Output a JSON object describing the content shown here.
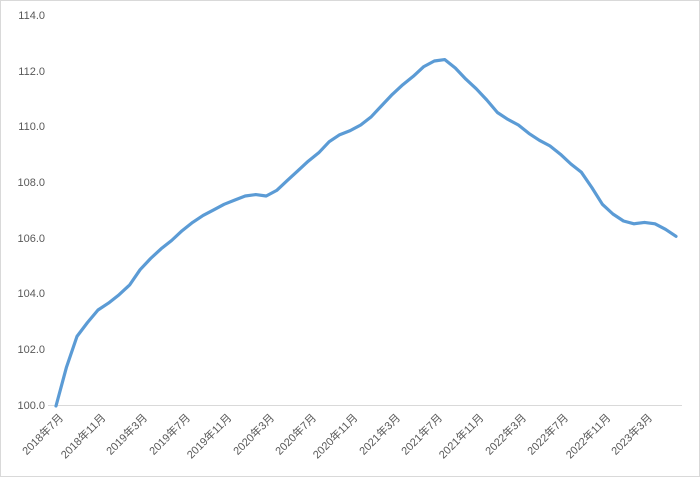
{
  "chart_data": {
    "type": "line",
    "title": "",
    "xlabel": "",
    "ylabel": "",
    "ylim": [
      100.0,
      114.0
    ],
    "y_tick_step": 2.0,
    "grid": false,
    "legend": "none",
    "line_color": "#5b9bd5",
    "axis_line_color": "#d9d9d9",
    "tick_label_color": "#595959",
    "background_color": "#ffffff",
    "y_tick_labels": [
      "114.0",
      "112.0",
      "110.0",
      "108.0",
      "106.0",
      "104.0",
      "102.0",
      "100.0"
    ],
    "x_tick_labels": [
      "2018年7月",
      "2018年11月",
      "2019年3月",
      "2019年7月",
      "2019年11月",
      "2020年3月",
      "2020年7月",
      "2020年11月",
      "2021年3月",
      "2021年7月",
      "2021年11月",
      "2022年3月",
      "2022年7月",
      "2022年11月",
      "2023年3月"
    ],
    "x_tick_every_n_points": 4,
    "series": [
      {
        "name": "",
        "x": [
          "2018年7月",
          "2018年8月",
          "2018年9月",
          "2018年10月",
          "2018年11月",
          "2018年12月",
          "2019年1月",
          "2019年2月",
          "2019年3月",
          "2019年4月",
          "2019年5月",
          "2019年6月",
          "2019年7月",
          "2019年8月",
          "2019年9月",
          "2019年10月",
          "2019年11月",
          "2019年12月",
          "2020年1月",
          "2020年2月",
          "2020年3月",
          "2020年4月",
          "2020年5月",
          "2020年6月",
          "2020年7月",
          "2020年8月",
          "2020年9月",
          "2020年10月",
          "2020年11月",
          "2020年12月",
          "2021年1月",
          "2021年2月",
          "2021年3月",
          "2021年4月",
          "2021年5月",
          "2021年6月",
          "2021年7月",
          "2021年8月",
          "2021年9月",
          "2021年10月",
          "2021年11月",
          "2021年12月",
          "2022年1月",
          "2022年2月",
          "2022年3月",
          "2022年4月",
          "2022年5月",
          "2022年6月",
          "2022年7月",
          "2022年8月",
          "2022年9月",
          "2022年10月",
          "2022年11月",
          "2022年12月",
          "2023年1月",
          "2023年2月",
          "2023年3月",
          "2023年4月",
          "2023年5月",
          "2023年6月"
        ],
        "values": [
          100.0,
          101.4,
          102.5,
          103.0,
          103.45,
          103.7,
          104.0,
          104.35,
          104.9,
          105.3,
          105.65,
          105.95,
          106.3,
          106.6,
          106.85,
          107.05,
          107.25,
          107.4,
          107.55,
          107.6,
          107.55,
          107.75,
          108.1,
          108.45,
          108.8,
          109.1,
          109.5,
          109.75,
          109.9,
          110.1,
          110.4,
          110.8,
          111.2,
          111.55,
          111.85,
          112.2,
          112.4,
          112.45,
          112.15,
          111.75,
          111.4,
          111.0,
          110.55,
          110.3,
          110.1,
          109.8,
          109.55,
          109.35,
          109.05,
          108.7,
          108.4,
          107.85,
          107.25,
          106.9,
          106.65,
          106.55,
          106.6,
          106.55,
          106.35,
          106.1
        ]
      }
    ]
  }
}
